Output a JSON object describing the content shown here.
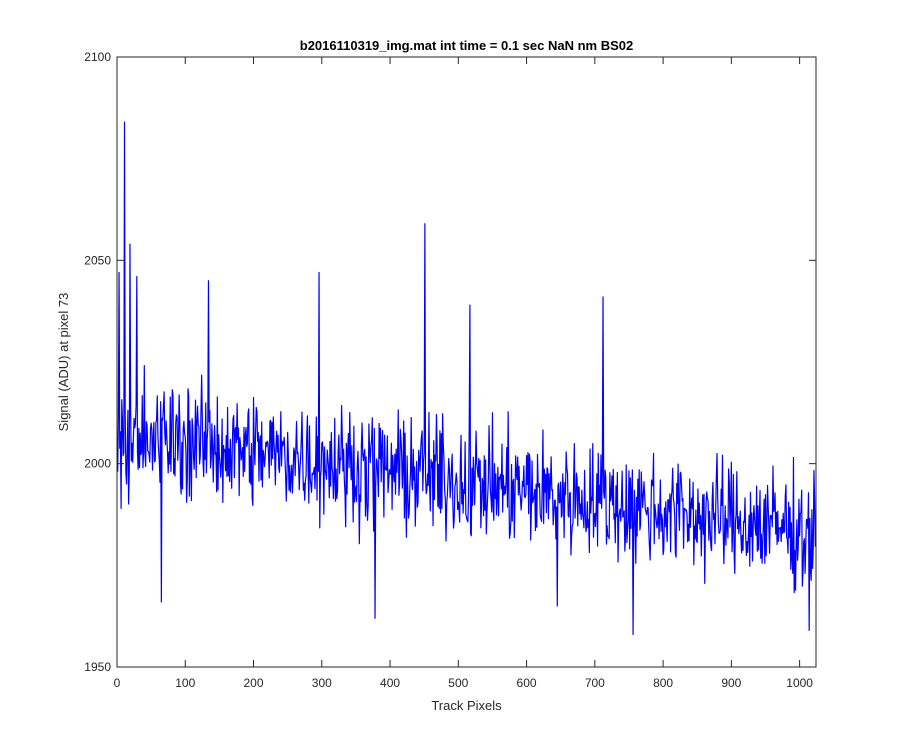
{
  "chart_data": {
    "type": "line",
    "title": "b2016110319_img.mat int time = 0.1 sec  NaN nm BS02",
    "xlabel": "Track Pixels",
    "ylabel": "Signal (ADU) at pixel 73",
    "xlim": [
      0,
      1024
    ],
    "ylim": [
      1950,
      2100
    ],
    "xticks": [
      0,
      100,
      200,
      300,
      400,
      500,
      600,
      700,
      800,
      900,
      1000
    ],
    "yticks": [
      1950,
      2000,
      2050,
      2100
    ],
    "grid": false,
    "line_color": "#0000ff",
    "series": [
      {
        "x_start": 1,
        "x_step": 1,
        "n_points": 1024,
        "trend": {
          "start": 2008,
          "end": 1983
        },
        "noise_amplitude": 12,
        "notable_points": [
          {
            "x": 1,
            "y": 1998
          },
          {
            "x": 3,
            "y": 2047
          },
          {
            "x": 6,
            "y": 1989
          },
          {
            "x": 11,
            "y": 2084
          },
          {
            "x": 14,
            "y": 1995
          },
          {
            "x": 19,
            "y": 2054
          },
          {
            "x": 29,
            "y": 2046
          },
          {
            "x": 65,
            "y": 1966
          },
          {
            "x": 134,
            "y": 2045
          },
          {
            "x": 296,
            "y": 2047
          },
          {
            "x": 378,
            "y": 1962
          },
          {
            "x": 451,
            "y": 2059
          },
          {
            "x": 517,
            "y": 2039
          },
          {
            "x": 645,
            "y": 1965
          },
          {
            "x": 712,
            "y": 2041
          },
          {
            "x": 756,
            "y": 1958
          },
          {
            "x": 1014,
            "y": 1959
          }
        ]
      }
    ]
  }
}
